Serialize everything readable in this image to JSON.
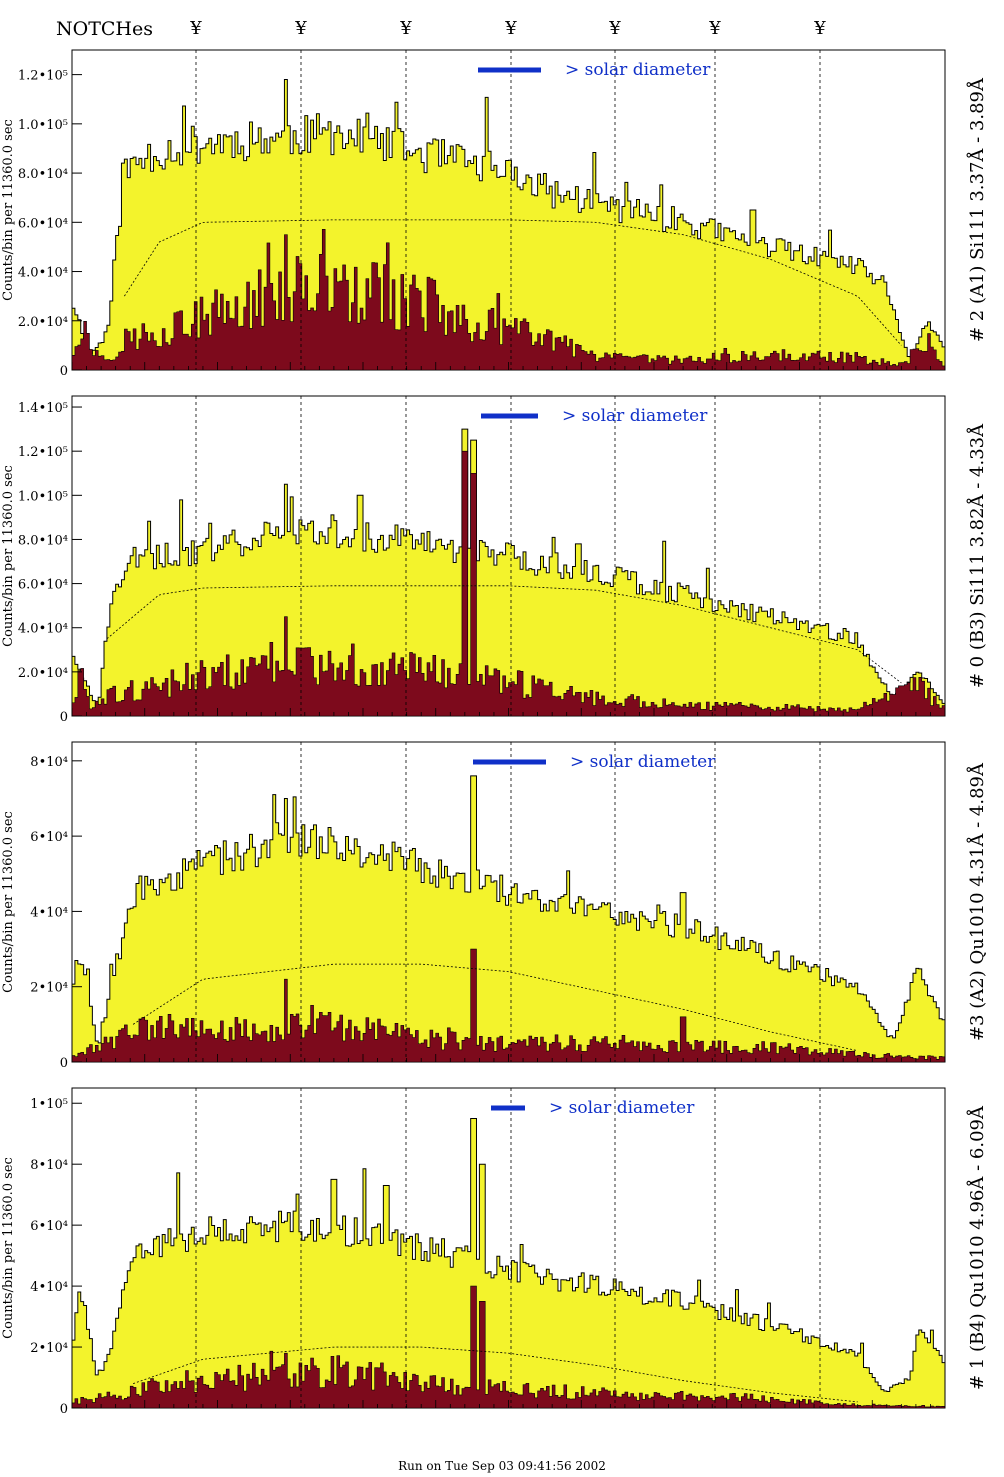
{
  "notches": {
    "label": "NOTCHes",
    "marker": "¥",
    "count": 7
  },
  "footer": {
    "run_text": "Run on Tue Sep 03 09:41:56 2002"
  },
  "colors": {
    "total_fill": "#f3f32c",
    "sub_fill": "#7d0a1c",
    "outline": "#000000",
    "solar_bar": "#1030c8",
    "solar_text": "#1030c8"
  },
  "chart_data": [
    {
      "type": "area",
      "panel_label": "# 2 (A1) Si111  3.37Å - 3.89Å",
      "ylabel": "Counts/bin per  11360.0 sec",
      "ymax": 130000,
      "yticks": [
        "0",
        "2.0•10⁴",
        "4.0•10⁴",
        "6.0•10⁴",
        "8.0•10⁴",
        "1.0•10⁵",
        "1.2•10⁵"
      ],
      "ytick_values": [
        0,
        20000,
        40000,
        60000,
        80000,
        100000,
        120000
      ],
      "solar_note": "> solar diameter",
      "series": [
        {
          "name": "total",
          "profile": [
            [
              0,
              28000
            ],
            [
              0.01,
              18000
            ],
            [
              0.02,
              6000
            ],
            [
              0.04,
              14000
            ],
            [
              0.06,
              80000
            ],
            [
              0.09,
              88000
            ],
            [
              0.15,
              92000
            ],
            [
              0.25,
              95000
            ],
            [
              0.3,
              96000
            ],
            [
              0.4,
              88000
            ],
            [
              0.5,
              80000
            ],
            [
              0.55,
              72000
            ],
            [
              0.6,
              68000
            ],
            [
              0.7,
              60000
            ],
            [
              0.75,
              55000
            ],
            [
              0.8,
              50000
            ],
            [
              0.9,
              42000
            ],
            [
              0.93,
              35000
            ],
            [
              0.96,
              4000
            ],
            [
              0.98,
              20000
            ],
            [
              1,
              8000
            ]
          ],
          "peaks": [
            [
              0.245,
              118000
            ],
            [
              0.78,
              65000
            ]
          ]
        },
        {
          "name": "sub",
          "profile": [
            [
              0,
              5000
            ],
            [
              0.01,
              20000
            ],
            [
              0.02,
              10000
            ],
            [
              0.04,
              4000
            ],
            [
              0.06,
              12000
            ],
            [
              0.12,
              18000
            ],
            [
              0.2,
              26000
            ],
            [
              0.25,
              34000
            ],
            [
              0.3,
              32000
            ],
            [
              0.4,
              28000
            ],
            [
              0.45,
              20000
            ],
            [
              0.55,
              12000
            ],
            [
              0.6,
              5000
            ],
            [
              0.7,
              4000
            ],
            [
              0.8,
              6000
            ],
            [
              0.9,
              5000
            ],
            [
              0.95,
              2000
            ],
            [
              0.98,
              12000
            ],
            [
              1,
              2000
            ]
          ],
          "peaks": [
            [
              0.245,
              55000
            ]
          ]
        },
        {
          "name": "model",
          "profile": [
            [
              0.06,
              30000
            ],
            [
              0.1,
              52000
            ],
            [
              0.15,
              60000
            ],
            [
              0.3,
              61000
            ],
            [
              0.5,
              61000
            ],
            [
              0.6,
              60000
            ],
            [
              0.7,
              55000
            ],
            [
              0.8,
              45000
            ],
            [
              0.9,
              30000
            ],
            [
              0.95,
              10000
            ]
          ],
          "peaks": []
        }
      ]
    },
    {
      "type": "area",
      "panel_label": "# 0 (B3) Si111  3.82Å - 4.33Å",
      "ylabel": "Counts/bin per  11360.0 sec",
      "ymax": 145000,
      "yticks": [
        "0",
        "2.0•10⁴",
        "4.0•10⁴",
        "6.0•10⁴",
        "8.0•10⁴",
        "1.0•10⁵",
        "1.2•10⁵",
        "1.4•10⁵"
      ],
      "ytick_values": [
        0,
        20000,
        40000,
        60000,
        80000,
        100000,
        120000,
        140000
      ],
      "solar_note": "> solar diameter",
      "series": [
        {
          "name": "total",
          "profile": [
            [
              0,
              30000
            ],
            [
              0.01,
              20000
            ],
            [
              0.03,
              2000
            ],
            [
              0.04,
              40000
            ],
            [
              0.06,
              70000
            ],
            [
              0.15,
              75000
            ],
            [
              0.25,
              85000
            ],
            [
              0.3,
              84000
            ],
            [
              0.4,
              78000
            ],
            [
              0.5,
              72000
            ],
            [
              0.6,
              65000
            ],
            [
              0.7,
              55000
            ],
            [
              0.8,
              45000
            ],
            [
              0.9,
              35000
            ],
            [
              0.94,
              8000
            ],
            [
              0.97,
              20000
            ],
            [
              1,
              5000
            ]
          ],
          "peaks": [
            [
              0.245,
              105000
            ],
            [
              0.33,
              100000
            ],
            [
              0.45,
              130000
            ],
            [
              0.46,
              125000
            ],
            [
              0.58,
              78000
            ]
          ]
        },
        {
          "name": "sub",
          "profile": [
            [
              0,
              5000
            ],
            [
              0.01,
              20000
            ],
            [
              0.02,
              5000
            ],
            [
              0.05,
              10000
            ],
            [
              0.15,
              18000
            ],
            [
              0.25,
              25000
            ],
            [
              0.4,
              20000
            ],
            [
              0.5,
              15000
            ],
            [
              0.6,
              8000
            ],
            [
              0.7,
              5000
            ],
            [
              0.8,
              4000
            ],
            [
              0.9,
              3000
            ],
            [
              0.97,
              15000
            ],
            [
              1,
              2000
            ]
          ],
          "peaks": [
            [
              0.245,
              45000
            ],
            [
              0.45,
              120000
            ],
            [
              0.46,
              110000
            ]
          ]
        },
        {
          "name": "model",
          "profile": [
            [
              0.04,
              35000
            ],
            [
              0.1,
              55000
            ],
            [
              0.15,
              58000
            ],
            [
              0.3,
              59000
            ],
            [
              0.5,
              59000
            ],
            [
              0.6,
              57000
            ],
            [
              0.7,
              50000
            ],
            [
              0.8,
              40000
            ],
            [
              0.9,
              30000
            ],
            [
              0.95,
              15000
            ]
          ],
          "peaks": []
        }
      ]
    },
    {
      "type": "area",
      "panel_label": "#3 (A2) Qu1010  4.31Å - 4.89Å",
      "ylabel": "Counts/bin per  11360.0 sec",
      "ymax": 85000,
      "yticks": [
        "0",
        "2•10⁴",
        "4•10⁴",
        "6•10⁴",
        "8•10⁴"
      ],
      "ytick_values": [
        0,
        20000,
        40000,
        60000,
        80000
      ],
      "solar_note": "> solar diameter",
      "series": [
        {
          "name": "total",
          "profile": [
            [
              0,
              20000
            ],
            [
              0.01,
              30000
            ],
            [
              0.03,
              3000
            ],
            [
              0.05,
              25000
            ],
            [
              0.07,
              45000
            ],
            [
              0.15,
              52000
            ],
            [
              0.25,
              60000
            ],
            [
              0.3,
              59000
            ],
            [
              0.4,
              52000
            ],
            [
              0.5,
              45000
            ],
            [
              0.6,
              40000
            ],
            [
              0.7,
              36000
            ],
            [
              0.8,
              28000
            ],
            [
              0.9,
              20000
            ],
            [
              0.94,
              5000
            ],
            [
              0.97,
              25000
            ],
            [
              1,
              10000
            ]
          ],
          "peaks": [
            [
              0.245,
              70000
            ],
            [
              0.46,
              76000
            ],
            [
              0.7,
              45000
            ]
          ]
        },
        {
          "name": "sub",
          "profile": [
            [
              0,
              2000
            ],
            [
              0.05,
              6000
            ],
            [
              0.1,
              10000
            ],
            [
              0.2,
              8000
            ],
            [
              0.3,
              10000
            ],
            [
              0.4,
              6000
            ],
            [
              0.5,
              5000
            ],
            [
              0.6,
              5000
            ],
            [
              0.7,
              4000
            ],
            [
              0.8,
              4000
            ],
            [
              0.9,
              2000
            ],
            [
              1,
              1000
            ]
          ],
          "peaks": [
            [
              0.245,
              22000
            ],
            [
              0.46,
              30000
            ],
            [
              0.7,
              12000
            ]
          ]
        },
        {
          "name": "model",
          "profile": [
            [
              0.07,
              10000
            ],
            [
              0.15,
              22000
            ],
            [
              0.3,
              26000
            ],
            [
              0.4,
              26000
            ],
            [
              0.5,
              24000
            ],
            [
              0.6,
              19000
            ],
            [
              0.7,
              14000
            ],
            [
              0.8,
              8000
            ],
            [
              0.9,
              3000
            ]
          ],
          "peaks": []
        }
      ]
    },
    {
      "type": "area",
      "panel_label": "# 1 (B4) Qu1010 4.96Å - 6.09Å",
      "ylabel": "Counts/bin per  11360.0 sec",
      "ymax": 105000,
      "yticks": [
        "0",
        "2•10⁴",
        "4•10⁴",
        "6•10⁴",
        "8•10⁴",
        "1•10⁵"
      ],
      "ytick_values": [
        0,
        20000,
        40000,
        60000,
        80000,
        100000
      ],
      "solar_note": "> solar diameter",
      "series": [
        {
          "name": "total",
          "profile": [
            [
              0,
              20000
            ],
            [
              0.01,
              40000
            ],
            [
              0.03,
              8000
            ],
            [
              0.05,
              25000
            ],
            [
              0.07,
              50000
            ],
            [
              0.15,
              58000
            ],
            [
              0.25,
              60000
            ],
            [
              0.3,
              59000
            ],
            [
              0.4,
              53000
            ],
            [
              0.5,
              45000
            ],
            [
              0.6,
              40000
            ],
            [
              0.7,
              35000
            ],
            [
              0.8,
              27000
            ],
            [
              0.9,
              18000
            ],
            [
              0.93,
              5000
            ],
            [
              0.96,
              10000
            ],
            [
              0.97,
              25000
            ],
            [
              1,
              15000
            ]
          ],
          "peaks": [
            [
              0.3,
              75000
            ],
            [
              0.36,
              73000
            ],
            [
              0.46,
              95000
            ],
            [
              0.47,
              80000
            ]
          ]
        },
        {
          "name": "sub",
          "profile": [
            [
              0,
              2000
            ],
            [
              0.05,
              4000
            ],
            [
              0.1,
              8000
            ],
            [
              0.2,
              10000
            ],
            [
              0.3,
              12000
            ],
            [
              0.4,
              8000
            ],
            [
              0.5,
              6000
            ],
            [
              0.6,
              5000
            ],
            [
              0.7,
              4000
            ],
            [
              0.8,
              3000
            ],
            [
              0.9,
              1000
            ],
            [
              1,
              500
            ]
          ],
          "peaks": [
            [
              0.245,
              18000
            ],
            [
              0.46,
              40000
            ],
            [
              0.47,
              35000
            ]
          ]
        },
        {
          "name": "model",
          "profile": [
            [
              0.07,
              8000
            ],
            [
              0.15,
              16000
            ],
            [
              0.3,
              20000
            ],
            [
              0.4,
              20000
            ],
            [
              0.5,
              18000
            ],
            [
              0.6,
              14000
            ],
            [
              0.7,
              9000
            ],
            [
              0.8,
              5000
            ],
            [
              0.9,
              2000
            ]
          ],
          "peaks": []
        }
      ]
    }
  ]
}
